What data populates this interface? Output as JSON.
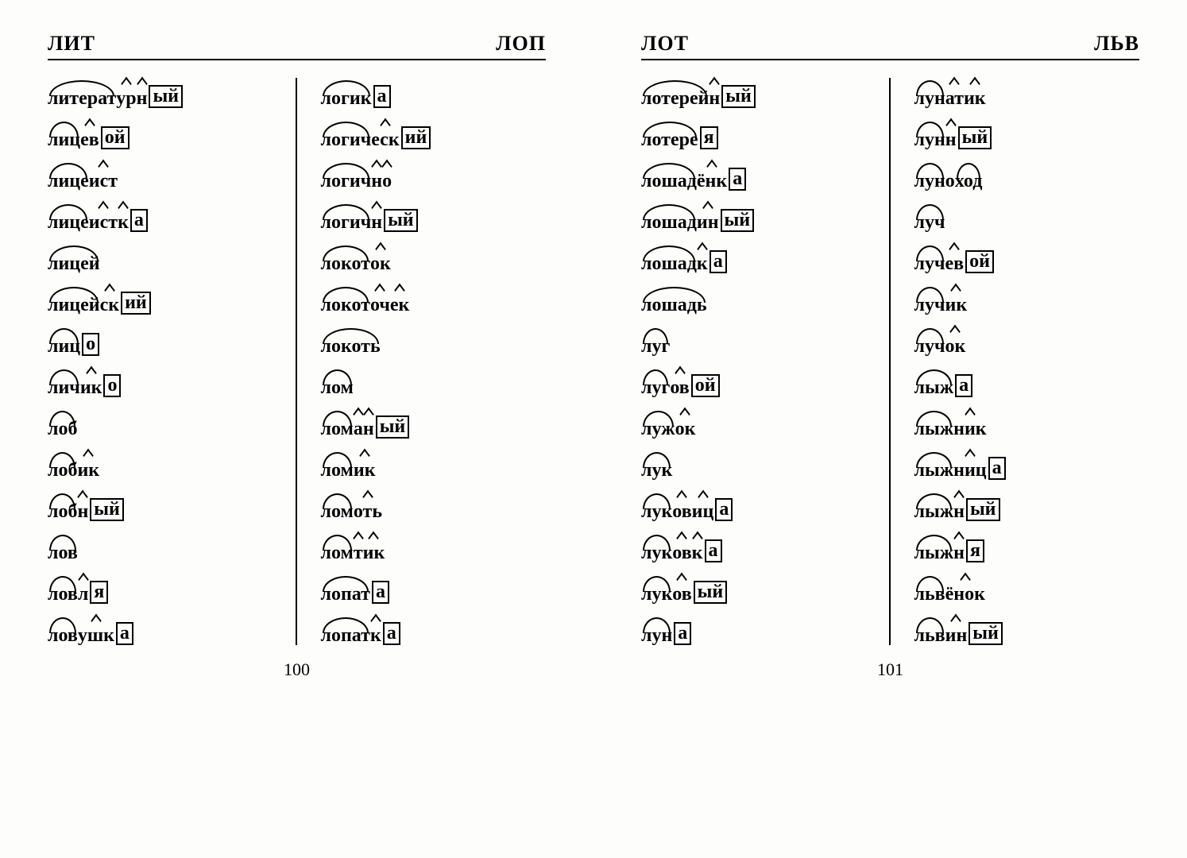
{
  "pages": [
    {
      "header_left": "ЛИТ",
      "header_right": "ЛОП",
      "page_number": "100",
      "columns": [
        [
          [
            [
              "root",
              "литерат"
            ],
            [
              "suffix",
              "ур"
            ],
            [
              "suffix",
              "н"
            ],
            [
              "ending",
              "ый"
            ]
          ],
          [
            [
              "root",
              "лиц"
            ],
            [
              "suffix",
              "ев"
            ],
            [
              "ending",
              "ой"
            ]
          ],
          [
            [
              "root",
              "лице"
            ],
            [
              "suffix",
              "ист"
            ]
          ],
          [
            [
              "root",
              "лице"
            ],
            [
              "suffix",
              "ист"
            ],
            [
              "suffix",
              "к"
            ],
            [
              "ending",
              "а"
            ]
          ],
          [
            [
              "root",
              "лицей"
            ]
          ],
          [
            [
              "root",
              "лицей"
            ],
            [
              "suffix",
              "ск"
            ],
            [
              "ending",
              "ий"
            ]
          ],
          [
            [
              "root",
              "лиц"
            ],
            [
              "ending",
              "о"
            ]
          ],
          [
            [
              "root",
              "лич"
            ],
            [
              "suffix",
              "ик"
            ],
            [
              "ending",
              "о"
            ]
          ],
          [
            [
              "root",
              "лоб"
            ]
          ],
          [
            [
              "root",
              "лоб"
            ],
            [
              "suffix",
              "ик"
            ]
          ],
          [
            [
              "root",
              "лоб"
            ],
            [
              "suffix",
              "н"
            ],
            [
              "ending",
              "ый"
            ]
          ],
          [
            [
              "root",
              "лов"
            ]
          ],
          [
            [
              "root",
              "лов"
            ],
            [
              "suffix",
              "л"
            ],
            [
              "ending",
              "я"
            ]
          ],
          [
            [
              "root",
              "лов"
            ],
            [
              "suffix",
              "ушк"
            ],
            [
              "ending",
              "а"
            ]
          ]
        ],
        [
          [
            [
              "root",
              "логик"
            ],
            [
              "ending",
              "а"
            ]
          ],
          [
            [
              "root",
              "логич"
            ],
            [
              "suffix",
              "еск"
            ],
            [
              "ending",
              "ий"
            ]
          ],
          [
            [
              "root",
              "логич"
            ],
            [
              "suffix",
              "н"
            ],
            [
              "suffix",
              "о"
            ]
          ],
          [
            [
              "root",
              "логич"
            ],
            [
              "suffix",
              "н"
            ],
            [
              "ending",
              "ый"
            ]
          ],
          [
            [
              "root",
              "локот"
            ],
            [
              "suffix",
              "ок"
            ]
          ],
          [
            [
              "root",
              "локот"
            ],
            [
              "suffix",
              "оч"
            ],
            [
              "suffix",
              "ек"
            ]
          ],
          [
            [
              "root",
              "локоть"
            ]
          ],
          [
            [
              "root",
              "лом"
            ]
          ],
          [
            [
              "root",
              "лом"
            ],
            [
              "suffix",
              "а"
            ],
            [
              "suffix",
              "н"
            ],
            [
              "ending",
              "ый"
            ]
          ],
          [
            [
              "root",
              "лом"
            ],
            [
              "suffix",
              "ик"
            ]
          ],
          [
            [
              "root",
              "лом"
            ],
            [
              "suffix",
              "оть"
            ]
          ],
          [
            [
              "root",
              "лом"
            ],
            [
              "suffix",
              "т"
            ],
            [
              "suffix",
              "ик"
            ]
          ],
          [
            [
              "root",
              "лопат"
            ],
            [
              "ending",
              "а"
            ]
          ],
          [
            [
              "root",
              "лопат"
            ],
            [
              "suffix",
              "к"
            ],
            [
              "ending",
              "а"
            ]
          ]
        ]
      ]
    },
    {
      "header_left": "ЛОТ",
      "header_right": "ЛЬВ",
      "page_number": "101",
      "columns": [
        [
          [
            [
              "root",
              "лотерей"
            ],
            [
              "suffix",
              "н"
            ],
            [
              "ending",
              "ый"
            ]
          ],
          [
            [
              "root",
              "лотере"
            ],
            [
              "ending",
              "я"
            ]
          ],
          [
            [
              "root",
              "лошад"
            ],
            [
              "suffix",
              "ёнк"
            ],
            [
              "ending",
              "а"
            ]
          ],
          [
            [
              "root",
              "лошад"
            ],
            [
              "suffix",
              "ин"
            ],
            [
              "ending",
              "ый"
            ]
          ],
          [
            [
              "root",
              "лошад"
            ],
            [
              "suffix",
              "к"
            ],
            [
              "ending",
              "а"
            ]
          ],
          [
            [
              "root",
              "лошадь"
            ]
          ],
          [
            [
              "root",
              "луг"
            ]
          ],
          [
            [
              "root",
              "луг"
            ],
            [
              "suffix",
              "ов"
            ],
            [
              "ending",
              "ой"
            ]
          ],
          [
            [
              "root",
              "луж"
            ],
            [
              "suffix",
              "ок"
            ]
          ],
          [
            [
              "root",
              "лук"
            ]
          ],
          [
            [
              "root",
              "лук"
            ],
            [
              "suffix",
              "ов"
            ],
            [
              "suffix",
              "иц"
            ],
            [
              "ending",
              "а"
            ]
          ],
          [
            [
              "root",
              "лук"
            ],
            [
              "suffix",
              "ов"
            ],
            [
              "suffix",
              "к"
            ],
            [
              "ending",
              "а"
            ]
          ],
          [
            [
              "root",
              "лук"
            ],
            [
              "suffix",
              "ов"
            ],
            [
              "ending",
              "ый"
            ]
          ],
          [
            [
              "root",
              "лун"
            ],
            [
              "ending",
              "а"
            ]
          ]
        ],
        [
          [
            [
              "root",
              "лун"
            ],
            [
              "suffix",
              "ат"
            ],
            [
              "suffix",
              "ик"
            ]
          ],
          [
            [
              "root",
              "лун"
            ],
            [
              "suffix",
              "н"
            ],
            [
              "ending",
              "ый"
            ]
          ],
          [
            [
              "root",
              "лун"
            ],
            [
              "plain",
              "о"
            ],
            [
              "root",
              "ход"
            ]
          ],
          [
            [
              "root",
              "луч"
            ]
          ],
          [
            [
              "root",
              "луч"
            ],
            [
              "suffix",
              "ев"
            ],
            [
              "ending",
              "ой"
            ]
          ],
          [
            [
              "root",
              "луч"
            ],
            [
              "suffix",
              "ик"
            ]
          ],
          [
            [
              "root",
              "луч"
            ],
            [
              "suffix",
              "ок"
            ]
          ],
          [
            [
              "root",
              "лыж"
            ],
            [
              "ending",
              "а"
            ]
          ],
          [
            [
              "root",
              "лыж"
            ],
            [
              "suffix",
              "ник"
            ]
          ],
          [
            [
              "root",
              "лыж"
            ],
            [
              "suffix",
              "ниц"
            ],
            [
              "ending",
              "а"
            ]
          ],
          [
            [
              "root",
              "лыж"
            ],
            [
              "suffix",
              "н"
            ],
            [
              "ending",
              "ый"
            ]
          ],
          [
            [
              "root",
              "лыж"
            ],
            [
              "suffix",
              "н"
            ],
            [
              "ending",
              "я"
            ]
          ],
          [
            [
              "root",
              "льв"
            ],
            [
              "suffix",
              "ёнок"
            ]
          ],
          [
            [
              "root",
              "льв"
            ],
            [
              "suffix",
              "ин"
            ],
            [
              "ending",
              "ый"
            ]
          ]
        ]
      ]
    }
  ]
}
